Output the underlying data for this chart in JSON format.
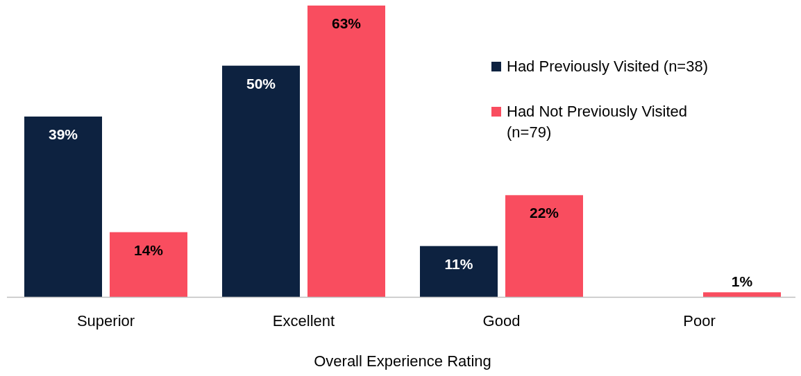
{
  "chart_data": {
    "type": "bar",
    "xlabel": "Overall Experience Rating",
    "categories": [
      "Superior",
      "Excellent",
      "Good",
      "Poor"
    ],
    "series": [
      {
        "name": "Had Previously Visited (n=38)",
        "color": "#0d2240",
        "values": [
          39,
          50,
          11,
          null
        ],
        "value_labels": [
          "39%",
          "50%",
          "11%",
          null
        ]
      },
      {
        "name": "Had Not Previously Visited (n=79)",
        "color": "#f94d5f",
        "values": [
          14,
          63,
          22,
          1
        ],
        "value_labels": [
          "14%",
          "63%",
          "22%",
          "1%"
        ]
      }
    ],
    "legend": "top right"
  }
}
